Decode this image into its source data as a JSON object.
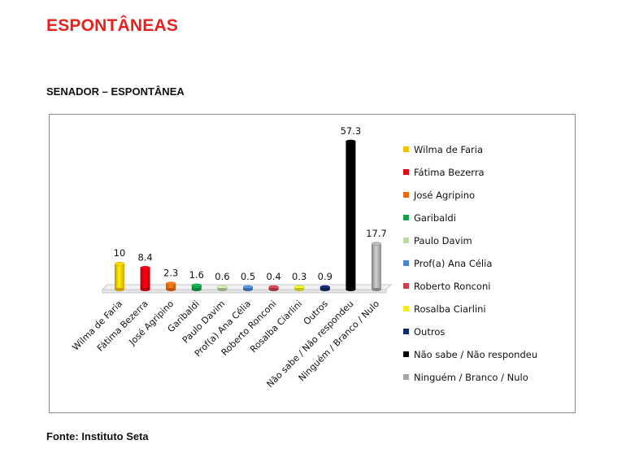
{
  "page": {
    "title": "ESPONTÂNEAS",
    "source": "Fonte: Instituto Seta"
  },
  "chart_data": {
    "type": "bar",
    "title": "SENADOR – ESPONTÂNEA",
    "xlabel": "",
    "ylabel": "",
    "ylim": [
      0,
      57.3
    ],
    "grid": false,
    "legend_position": "right",
    "categories": [
      "Wilma de Faria",
      "Fátima Bezerra",
      "José Agripino",
      "Garibaldi",
      "Paulo Davim",
      "Prof(a) Ana Célia",
      "Roberto Ronconi",
      "Rosalba Ciarlini",
      "Outros",
      "Não sabe / Não respondeu",
      "Ninguém / Branco / Nulo"
    ],
    "values": [
      10,
      8.4,
      2.3,
      1.6,
      0.6,
      0.5,
      0.4,
      0.3,
      0.9,
      57.3,
      17.7
    ],
    "value_labels": [
      "10",
      "8.4",
      "2.3",
      "1.6",
      "0.6",
      "0.5",
      "0.4",
      "0.3",
      "0.9",
      "57.3",
      "17.7"
    ],
    "colors": [
      "#f5c200",
      "#e3000f",
      "#e86a10",
      "#12a04a",
      "#bcd7a0",
      "#4a86d0",
      "#c8404a",
      "#f2ec20",
      "#0f2a6a",
      "#000000",
      "#a6a6a6"
    ],
    "legend": [
      "Wilma de Faria",
      "Fátima Bezerra",
      "José Agripino",
      "Garibaldi",
      "Paulo Davim",
      "Prof(a) Ana Célia",
      "Roberto Ronconi",
      "Rosalba Ciarlini",
      "Outros",
      "Não sabe / Não respondeu",
      "Ninguém / Branco / Nulo"
    ]
  }
}
